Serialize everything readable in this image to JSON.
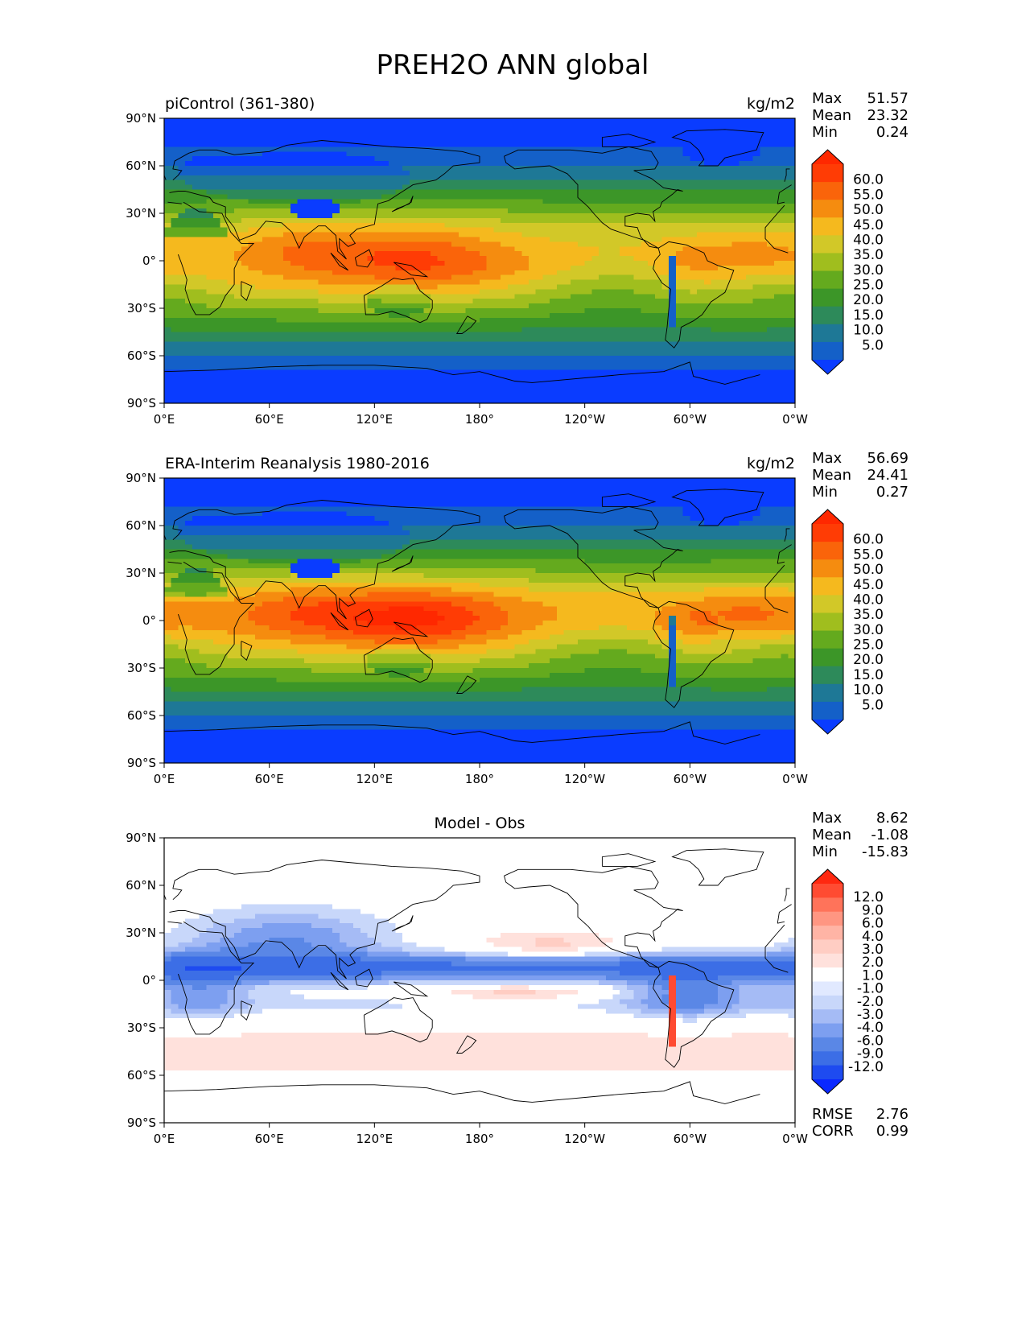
{
  "figure_title": "PREH2O ANN global",
  "chart_data": [
    {
      "type": "heatmap",
      "title": "piControl (361-380)",
      "units": "kg/m2",
      "x_ticks": [
        "0°E",
        "60°E",
        "120°E",
        "180°",
        "120°W",
        "60°W",
        "0°W"
      ],
      "y_ticks": [
        "90°N",
        "60°N",
        "30°N",
        "0°",
        "30°S",
        "60°S",
        "90°S"
      ],
      "xlim": [
        0,
        360
      ],
      "ylim": [
        -90,
        90
      ],
      "stats": [
        {
          "label": "Max",
          "value": "51.57"
        },
        {
          "label": "Mean",
          "value": "23.32"
        },
        {
          "label": "Min",
          "value": "0.24"
        }
      ],
      "colorbar": {
        "ticks": [
          "60.0",
          "55.0",
          "50.0",
          "45.0",
          "40.0",
          "35.0",
          "30.0",
          "25.0",
          "20.0",
          "15.0",
          "10.0",
          "5.0"
        ],
        "colors": [
          "#0a3cff",
          "#1460c8",
          "#1e7896",
          "#2d8a5a",
          "#3c9628",
          "#64aa1e",
          "#a0be1e",
          "#d2c828",
          "#f5b91e",
          "#f58c0f",
          "#fa640a",
          "#ff3c05",
          "#ff2800"
        ]
      },
      "field": "model"
    },
    {
      "type": "heatmap",
      "title": "ERA-Interim Reanalysis 1980-2016",
      "units": "kg/m2",
      "x_ticks": [
        "0°E",
        "60°E",
        "120°E",
        "180°",
        "120°W",
        "60°W",
        "0°W"
      ],
      "y_ticks": [
        "90°N",
        "60°N",
        "30°N",
        "0°",
        "30°S",
        "60°S",
        "90°S"
      ],
      "xlim": [
        0,
        360
      ],
      "ylim": [
        -90,
        90
      ],
      "stats": [
        {
          "label": "Max",
          "value": "56.69"
        },
        {
          "label": "Mean",
          "value": "24.41"
        },
        {
          "label": "Min",
          "value": "0.27"
        }
      ],
      "colorbar": {
        "ticks": [
          "60.0",
          "55.0",
          "50.0",
          "45.0",
          "40.0",
          "35.0",
          "30.0",
          "25.0",
          "20.0",
          "15.0",
          "10.0",
          "5.0"
        ],
        "colors": [
          "#0a3cff",
          "#1460c8",
          "#1e7896",
          "#2d8a5a",
          "#3c9628",
          "#64aa1e",
          "#a0be1e",
          "#d2c828",
          "#f5b91e",
          "#f58c0f",
          "#fa640a",
          "#ff3c05",
          "#ff2800"
        ]
      },
      "field": "obs"
    },
    {
      "type": "heatmap",
      "title": "Model - Obs",
      "units": "",
      "x_ticks": [
        "0°E",
        "60°E",
        "120°E",
        "180°",
        "120°W",
        "60°W",
        "0°W"
      ],
      "y_ticks": [
        "90°N",
        "60°N",
        "30°N",
        "0°",
        "30°S",
        "60°S",
        "90°S"
      ],
      "xlim": [
        0,
        360
      ],
      "ylim": [
        -90,
        90
      ],
      "stats": [
        {
          "label": "Max",
          "value": "8.62"
        },
        {
          "label": "Mean",
          "value": "-1.08"
        },
        {
          "label": "Min",
          "value": "-15.83"
        }
      ],
      "colorbar": {
        "ticks": [
          "12.0",
          "9.0",
          "6.0",
          "4.0",
          "3.0",
          "2.0",
          "1.0",
          "-1.0",
          "-2.0",
          "-3.0",
          "-4.0",
          "-6.0",
          "-9.0",
          "-12.0"
        ],
        "colors": [
          "#0a28ff",
          "#1e4bf0",
          "#3c6ee6",
          "#5a87e6",
          "#7d9ff0",
          "#a5bbf5",
          "#c8d7fa",
          "#e1e9ff",
          "#ffffff",
          "#ffe1dc",
          "#ffcdc3",
          "#ffb4a5",
          "#ff9682",
          "#ff735a",
          "#ff4b32",
          "#ff2810"
        ]
      },
      "field": "diff",
      "bottom_stats": [
        {
          "label": "RMSE",
          "value": "2.76"
        },
        {
          "label": "CORR",
          "value": "0.99"
        }
      ]
    }
  ]
}
